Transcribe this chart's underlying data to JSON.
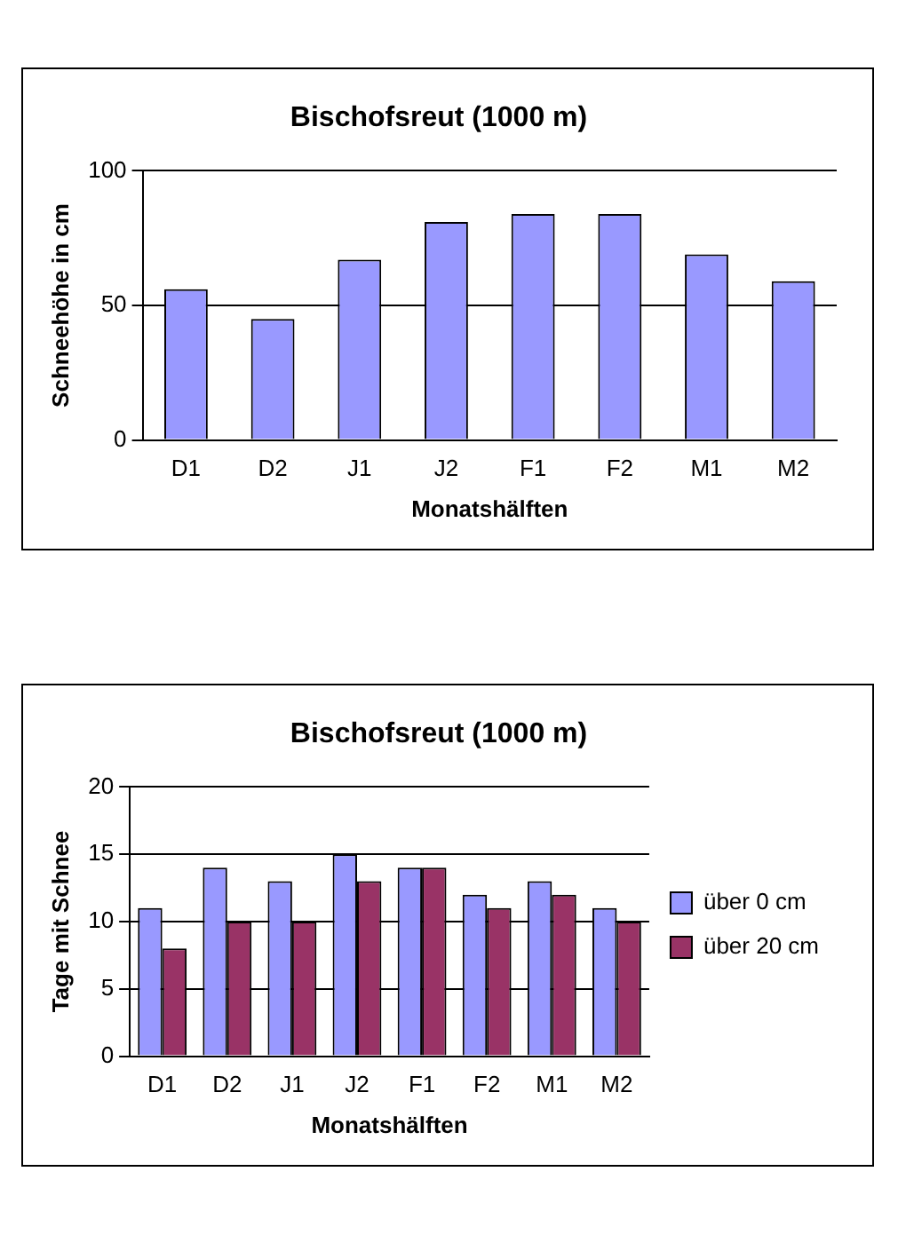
{
  "chart_data": [
    {
      "type": "bar",
      "title": "Bischofsreut (1000 m)",
      "xlabel": "Monatshälften",
      "ylabel": "Schneehöhe in cm",
      "categories": [
        "D1",
        "D2",
        "J1",
        "J2",
        "F1",
        "F2",
        "M1",
        "M2"
      ],
      "values": [
        56,
        45,
        67,
        81,
        84,
        84,
        69,
        59
      ],
      "color": "#9999ff",
      "ylim": [
        0,
        100
      ],
      "yticks": [
        0,
        50,
        100
      ],
      "grid": "y"
    },
    {
      "type": "bar",
      "title": "Bischofsreut (1000 m)",
      "xlabel": "Monatshälften",
      "ylabel": "Tage mit Schnee",
      "categories": [
        "D1",
        "D2",
        "J1",
        "J2",
        "F1",
        "F2",
        "M1",
        "M2"
      ],
      "series": [
        {
          "name": "über 0 cm",
          "color": "#9999ff",
          "values": [
            11,
            14,
            13,
            15,
            14,
            12,
            13,
            11
          ]
        },
        {
          "name": "über 20 cm",
          "color": "#993366",
          "values": [
            8,
            10,
            10,
            13,
            14,
            11,
            12,
            10
          ]
        }
      ],
      "ylim": [
        0,
        20
      ],
      "yticks": [
        0,
        5,
        10,
        15,
        20
      ],
      "grid": "y",
      "legend": "right"
    }
  ]
}
